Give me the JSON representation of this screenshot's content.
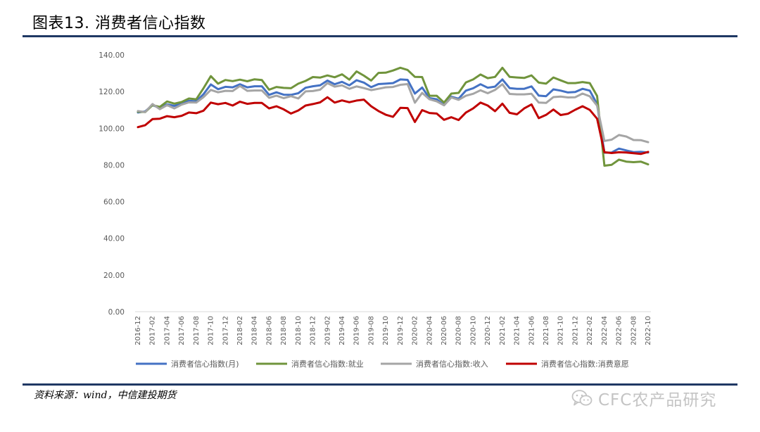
{
  "page": {
    "title": "图表13.  消费者信心指数",
    "source": "资料来源：wind，中信建投期货",
    "watermark": "CFC农产品研究"
  },
  "colors": {
    "rule": "#1f3864",
    "axis_text": "#595959",
    "axis_line": "#d9d9d9"
  },
  "icons": {
    "watermark_icon": "wechat-icon"
  },
  "chart_data": {
    "type": "line",
    "title": "",
    "xlabel": "",
    "ylabel": "",
    "ylim": [
      0,
      140
    ],
    "yticks": [
      "0.00",
      "20.00",
      "40.00",
      "60.00",
      "80.00",
      "100.00",
      "120.00",
      "140.00"
    ],
    "grid": false,
    "legend_position": "bottom",
    "x": [
      "2016-12",
      "2017-01",
      "2017-02",
      "2017-03",
      "2017-04",
      "2017-05",
      "2017-06",
      "2017-07",
      "2017-08",
      "2017-09",
      "2017-10",
      "2017-11",
      "2017-12",
      "2018-01",
      "2018-02",
      "2018-03",
      "2018-04",
      "2018-05",
      "2018-06",
      "2018-07",
      "2018-08",
      "2018-09",
      "2018-10",
      "2018-11",
      "2018-12",
      "2019-01",
      "2019-02",
      "2019-03",
      "2019-04",
      "2019-05",
      "2019-06",
      "2019-07",
      "2019-08",
      "2019-09",
      "2019-10",
      "2019-11",
      "2019-12",
      "2020-01",
      "2020-02",
      "2020-03",
      "2020-04",
      "2020-05",
      "2020-06",
      "2020-07",
      "2020-08",
      "2020-09",
      "2020-10",
      "2020-11",
      "2020-12",
      "2021-01",
      "2021-02",
      "2021-03",
      "2021-04",
      "2021-05",
      "2021-06",
      "2021-07",
      "2021-08",
      "2021-09",
      "2021-10",
      "2021-11",
      "2021-12",
      "2022-01",
      "2022-02",
      "2022-03",
      "2022-04",
      "2022-05",
      "2022-06",
      "2022-07",
      "2022-08",
      "2022-09",
      "2022-10"
    ],
    "xtick_labels": [
      "2016-12",
      "2017-02",
      "2017-04",
      "2017-06",
      "2017-08",
      "2017-10",
      "2017-12",
      "2018-02",
      "2018-04",
      "2018-06",
      "2018-08",
      "2018-10",
      "2018-12",
      "2019-02",
      "2019-04",
      "2019-06",
      "2019-08",
      "2019-10",
      "2019-12",
      "2020-02",
      "2020-04",
      "2020-06",
      "2020-08",
      "2020-10",
      "2020-12",
      "2021-02",
      "2021-04",
      "2021-06",
      "2021-08",
      "2021-10",
      "2021-12",
      "2022-02",
      "2022-04",
      "2022-06",
      "2022-08",
      "2022-10"
    ],
    "series": [
      {
        "name": "消费者信心指数(月)",
        "color": "#4472c4",
        "values": [
          108.6,
          109.2,
          112.6,
          111.0,
          113.0,
          112.2,
          113.6,
          115.0,
          114.7,
          118.6,
          123.9,
          121.3,
          122.6,
          122.3,
          124.0,
          122.3,
          122.9,
          122.9,
          118.2,
          119.6,
          118.3,
          118.2,
          119.1,
          122.1,
          122.9,
          123.4,
          126.0,
          124.0,
          125.3,
          123.4,
          126.2,
          124.9,
          122.4,
          124.1,
          124.3,
          124.6,
          126.6,
          126.4,
          118.9,
          122.2,
          116.4,
          115.8,
          112.6,
          117.2,
          116.1,
          120.5,
          121.8,
          124.0,
          122.1,
          122.7,
          126.6,
          121.9,
          121.5,
          121.5,
          122.8,
          117.8,
          117.5,
          121.2,
          120.5,
          119.5,
          119.8,
          121.5,
          120.5,
          113.2,
          86.7,
          86.8,
          88.9,
          87.9,
          87.0,
          87.2,
          86.8
        ]
      },
      {
        "name": "消费者信心指数:就业",
        "color": "#70943c",
        "values": [
          109.0,
          108.8,
          112.6,
          111.6,
          114.6,
          113.4,
          114.3,
          116.2,
          115.8,
          121.8,
          128.4,
          124.3,
          126.3,
          125.7,
          126.5,
          125.6,
          126.7,
          126.3,
          121.0,
          122.5,
          122.0,
          121.8,
          124.3,
          125.8,
          127.9,
          127.6,
          128.8,
          127.8,
          129.4,
          126.5,
          131.0,
          128.7,
          126.0,
          130.2,
          130.3,
          131.5,
          133.0,
          131.8,
          128.0,
          127.9,
          117.7,
          117.7,
          114.0,
          118.9,
          119.3,
          125.0,
          126.6,
          129.3,
          127.3,
          128.0,
          133.0,
          128.0,
          127.7,
          127.4,
          128.8,
          124.9,
          124.3,
          127.7,
          126.1,
          124.6,
          124.6,
          125.2,
          124.6,
          117.6,
          79.6,
          80.1,
          82.9,
          81.8,
          81.5,
          81.8,
          80.3
        ]
      },
      {
        "name": "消费者信心指数:收入",
        "color": "#a5a5a5",
        "values": [
          109.4,
          108.8,
          113.2,
          110.4,
          112.6,
          110.8,
          112.9,
          114.1,
          114.0,
          117.0,
          120.9,
          119.6,
          120.4,
          120.3,
          123.1,
          120.4,
          120.6,
          120.6,
          116.6,
          117.8,
          116.4,
          117.5,
          116.2,
          120.1,
          120.3,
          121.0,
          124.6,
          122.7,
          123.4,
          121.5,
          122.8,
          121.9,
          120.8,
          121.5,
          122.3,
          122.5,
          123.7,
          124.1,
          113.9,
          119.3,
          115.8,
          114.7,
          112.5,
          116.8,
          115.5,
          117.7,
          118.8,
          120.7,
          119.1,
          120.9,
          124.0,
          118.7,
          118.5,
          118.5,
          118.8,
          114.0,
          113.8,
          117.0,
          117.3,
          116.8,
          116.9,
          118.9,
          117.4,
          112.3,
          93.1,
          93.8,
          96.3,
          95.5,
          93.6,
          93.5,
          92.4
        ]
      },
      {
        "name": "消费者信心指数:消费意愿",
        "color": "#c00000",
        "values": [
          100.6,
          101.7,
          105.0,
          105.2,
          106.6,
          106.0,
          106.8,
          108.6,
          108.2,
          109.6,
          114.0,
          113.1,
          113.8,
          112.4,
          114.5,
          113.3,
          113.8,
          113.8,
          110.8,
          112.0,
          110.3,
          108.0,
          109.7,
          112.4,
          113.2,
          114.1,
          116.9,
          114.0,
          115.2,
          114.2,
          115.1,
          115.6,
          112.0,
          109.4,
          107.4,
          106.2,
          111.1,
          111.0,
          103.4,
          109.9,
          108.3,
          108.0,
          104.6,
          106.0,
          104.5,
          108.6,
          110.8,
          114.0,
          112.4,
          109.3,
          113.4,
          108.4,
          107.6,
          110.8,
          113.0,
          105.5,
          107.3,
          110.2,
          107.2,
          107.9,
          110.1,
          112.0,
          110.0,
          105.2,
          86.9,
          86.5,
          86.9,
          86.8,
          86.4,
          86.0,
          87.1
        ]
      }
    ]
  }
}
